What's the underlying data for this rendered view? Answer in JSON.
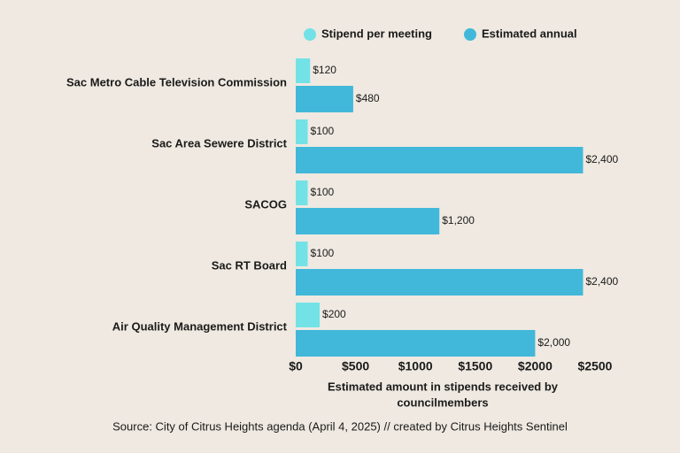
{
  "chart_data": {
    "type": "hbar",
    "categories": [
      "Sac Metro Cable Television Commission",
      "Sac Area Sewere District",
      "SACOG",
      "Sac RT Board",
      "Air Quality Management District"
    ],
    "series": [
      {
        "name": "Stipend per meeting",
        "color": "#72e2e6",
        "values": [
          120,
          100,
          100,
          100,
          200
        ],
        "value_labels": [
          "$120",
          "$100",
          "$100",
          "$100",
          "$200"
        ]
      },
      {
        "name": "Estimated annual",
        "color": "#41b8d9",
        "values": [
          480,
          2400,
          1200,
          2400,
          2000
        ],
        "value_labels": [
          "$480",
          "$2,400",
          "$1,200",
          "$2,400",
          "$2,000"
        ]
      }
    ],
    "xlim": [
      0,
      2500
    ],
    "xticks": [
      {
        "value": 0,
        "label": "$0"
      },
      {
        "value": 500,
        "label": "$500"
      },
      {
        "value": 1000,
        "label": "$1000"
      },
      {
        "value": 1500,
        "label": "$1500"
      },
      {
        "value": 2000,
        "label": "$2000"
      },
      {
        "value": 2500,
        "label": "$2500"
      }
    ],
    "xlabel": [
      "Estimated amount in stipends received by",
      "councilmembers"
    ],
    "source": "Source: City of Citrus Heights agenda (April 4, 2025) // created by Citrus Heights Sentinel",
    "legend": "top"
  }
}
